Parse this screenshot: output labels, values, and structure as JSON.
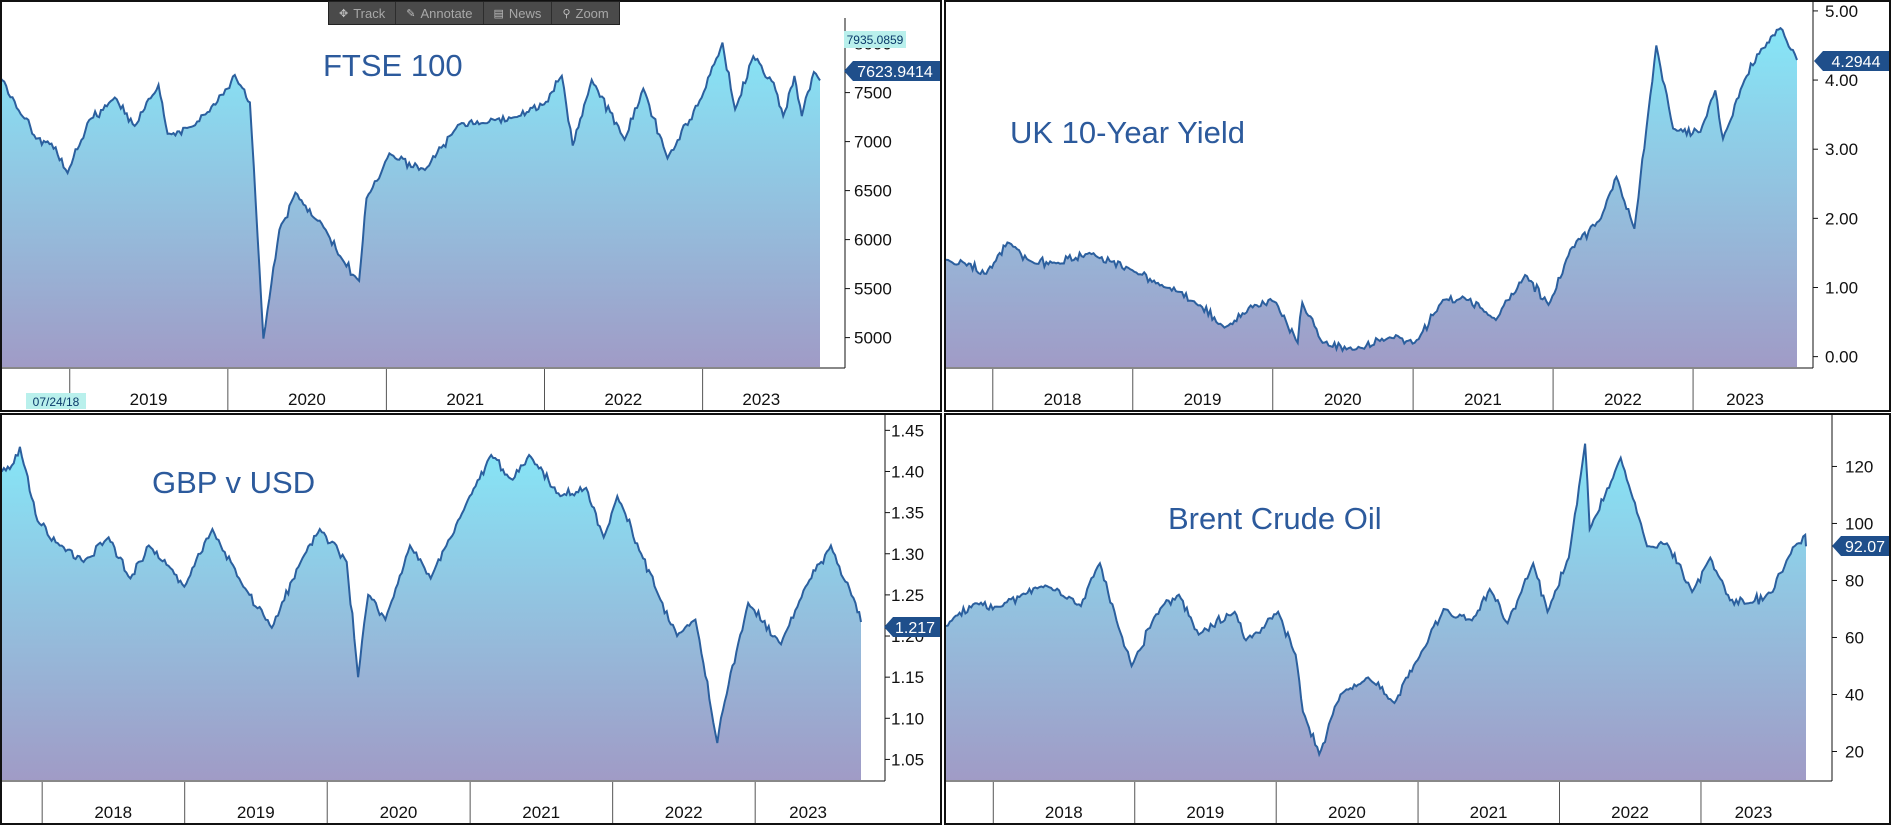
{
  "toolbar": {
    "track": "Track",
    "annotate": "Annotate",
    "news": "News",
    "zoom": "Zoom"
  },
  "colors": {
    "line": "#2b5f9e",
    "fill_top": "#86e6f7",
    "fill_bottom": "#a09bc6",
    "badge": "#1f4f8b",
    "title": "#2c5a9c",
    "frame": "#111111"
  },
  "chart_data": [
    {
      "id": "ftse",
      "type": "area",
      "title": "FTSE 100",
      "x_range": [
        "2018-07-24",
        "2023-09-29"
      ],
      "ylim": [
        4700,
        8200
      ],
      "y_ticks": [
        {
          "v": 5000,
          "label": "5000"
        },
        {
          "v": 5500,
          "label": "5500"
        },
        {
          "v": 6000,
          "label": "6000"
        },
        {
          "v": 6500,
          "label": "6500"
        },
        {
          "v": 7000,
          "label": "7000"
        },
        {
          "v": 7500,
          "label": "7500"
        },
        {
          "v": 8000,
          "label": "8000"
        }
      ],
      "x_labels": [
        "2019",
        "2020",
        "2021",
        "2022",
        "2023"
      ],
      "first_date_label": "07/24/18",
      "last_value_label": "7623.9414",
      "high_value_label": "7935.0859",
      "points": [
        [
          "2018-07-24",
          7655
        ],
        [
          "2018-09-10",
          7280
        ],
        [
          "2018-10-15",
          7030
        ],
        [
          "2018-11-20",
          6980
        ],
        [
          "2018-12-27",
          6680
        ],
        [
          "2019-02-15",
          7220
        ],
        [
          "2019-04-15",
          7450
        ],
        [
          "2019-05-31",
          7160
        ],
        [
          "2019-07-25",
          7580
        ],
        [
          "2019-08-15",
          7080
        ],
        [
          "2019-10-08",
          7150
        ],
        [
          "2019-11-15",
          7300
        ],
        [
          "2019-12-31",
          7540
        ],
        [
          "2020-01-17",
          7680
        ],
        [
          "2020-02-21",
          7400
        ],
        [
          "2020-03-23",
          4990
        ],
        [
          "2020-04-29",
          6100
        ],
        [
          "2020-06-05",
          6480
        ],
        [
          "2020-08-14",
          6100
        ],
        [
          "2020-09-21",
          5800
        ],
        [
          "2020-10-30",
          5580
        ],
        [
          "2020-11-16",
          6420
        ],
        [
          "2021-01-08",
          6880
        ],
        [
          "2021-03-31",
          6710
        ],
        [
          "2021-06-15",
          7170
        ],
        [
          "2021-08-12",
          7190
        ],
        [
          "2021-10-25",
          7250
        ],
        [
          "2021-12-31",
          7380
        ],
        [
          "2022-02-10",
          7670
        ],
        [
          "2022-03-07",
          6960
        ],
        [
          "2022-04-20",
          7630
        ],
        [
          "2022-07-05",
          7020
        ],
        [
          "2022-08-17",
          7540
        ],
        [
          "2022-10-12",
          6830
        ],
        [
          "2022-12-30",
          7450
        ],
        [
          "2023-02-16",
          8010
        ],
        [
          "2023-03-17",
          7330
        ],
        [
          "2023-04-28",
          7870
        ],
        [
          "2023-06-14",
          7600
        ],
        [
          "2023-07-06",
          7260
        ],
        [
          "2023-08-01",
          7670
        ],
        [
          "2023-08-18",
          7260
        ],
        [
          "2023-09-15",
          7710
        ],
        [
          "2023-09-29",
          7624
        ]
      ]
    },
    {
      "id": "gilt",
      "type": "area",
      "title": "UK 10-Year Yield",
      "x_range": [
        "2017-09-01",
        "2023-09-29"
      ],
      "ylim": [
        -0.15,
        5.1
      ],
      "y_ticks": [
        {
          "v": 0,
          "label": "0.00"
        },
        {
          "v": 1,
          "label": "1.00"
        },
        {
          "v": 2,
          "label": "2.00"
        },
        {
          "v": 3,
          "label": "3.00"
        },
        {
          "v": 4,
          "label": "4.00"
        },
        {
          "v": 5,
          "label": "5.00"
        }
      ],
      "x_labels": [
        "2018",
        "2019",
        "2020",
        "2021",
        "2022",
        "2023"
      ],
      "last_value_label": "4.2944",
      "points": [
        [
          "2017-09-01",
          1.4
        ],
        [
          "2017-10-20",
          1.35
        ],
        [
          "2017-12-15",
          1.2
        ],
        [
          "2018-02-08",
          1.65
        ],
        [
          "2018-04-20",
          1.35
        ],
        [
          "2018-06-15",
          1.35
        ],
        [
          "2018-09-10",
          1.5
        ],
        [
          "2018-12-31",
          1.25
        ],
        [
          "2019-03-28",
          1.0
        ],
        [
          "2019-06-10",
          0.8
        ],
        [
          "2019-08-28",
          0.42
        ],
        [
          "2019-11-15",
          0.75
        ],
        [
          "2020-01-10",
          0.78
        ],
        [
          "2020-03-06",
          0.2
        ],
        [
          "2020-03-18",
          0.78
        ],
        [
          "2020-05-10",
          0.2
        ],
        [
          "2020-08-01",
          0.1
        ],
        [
          "2020-11-01",
          0.28
        ],
        [
          "2021-01-05",
          0.2
        ],
        [
          "2021-03-20",
          0.82
        ],
        [
          "2021-05-15",
          0.85
        ],
        [
          "2021-08-05",
          0.53
        ],
        [
          "2021-10-20",
          1.18
        ],
        [
          "2021-12-20",
          0.75
        ],
        [
          "2022-02-15",
          1.55
        ],
        [
          "2022-05-06",
          2.0
        ],
        [
          "2022-06-15",
          2.6
        ],
        [
          "2022-08-01",
          1.85
        ],
        [
          "2022-09-27",
          4.5
        ],
        [
          "2022-11-10",
          3.3
        ],
        [
          "2023-01-20",
          3.25
        ],
        [
          "2023-02-28",
          3.85
        ],
        [
          "2023-03-20",
          3.15
        ],
        [
          "2023-05-15",
          4.0
        ],
        [
          "2023-06-28",
          4.45
        ],
        [
          "2023-08-17",
          4.75
        ],
        [
          "2023-09-29",
          4.29
        ]
      ]
    },
    {
      "id": "gbpusd",
      "type": "area",
      "title": "GBP v USD",
      "x_range": [
        "2017-09-15",
        "2023-09-29"
      ],
      "ylim": [
        1.025,
        1.465
      ],
      "y_ticks": [
        {
          "v": 1.05,
          "label": "1.05"
        },
        {
          "v": 1.1,
          "label": "1.10"
        },
        {
          "v": 1.15,
          "label": "1.15"
        },
        {
          "v": 1.2,
          "label": "1.20"
        },
        {
          "v": 1.25,
          "label": "1.25"
        },
        {
          "v": 1.3,
          "label": "1.30"
        },
        {
          "v": 1.35,
          "label": "1.35"
        },
        {
          "v": 1.4,
          "label": "1.40"
        },
        {
          "v": 1.45,
          "label": "1.45"
        }
      ],
      "x_labels": [
        "2018",
        "2019",
        "2020",
        "2021",
        "2022",
        "2023"
      ],
      "last_value_label": "1.217",
      "points": [
        [
          "2017-09-15",
          1.4
        ],
        [
          "2017-10-20",
          1.41
        ],
        [
          "2017-11-05",
          1.43
        ],
        [
          "2017-12-20",
          1.34
        ],
        [
          "2018-02-15",
          1.31
        ],
        [
          "2018-04-17",
          1.29
        ],
        [
          "2018-06-20",
          1.32
        ],
        [
          "2018-08-15",
          1.27
        ],
        [
          "2018-10-01",
          1.31
        ],
        [
          "2018-12-31",
          1.26
        ],
        [
          "2019-03-13",
          1.33
        ],
        [
          "2019-05-31",
          1.26
        ],
        [
          "2019-08-12",
          1.21
        ],
        [
          "2019-10-25",
          1.29
        ],
        [
          "2019-12-13",
          1.33
        ],
        [
          "2020-02-20",
          1.29
        ],
        [
          "2020-03-20",
          1.15
        ],
        [
          "2020-04-15",
          1.25
        ],
        [
          "2020-05-29",
          1.22
        ],
        [
          "2020-07-31",
          1.31
        ],
        [
          "2020-09-22",
          1.27
        ],
        [
          "2020-12-31",
          1.37
        ],
        [
          "2021-02-24",
          1.42
        ],
        [
          "2021-04-20",
          1.39
        ],
        [
          "2021-06-01",
          1.42
        ],
        [
          "2021-08-20",
          1.37
        ],
        [
          "2021-10-25",
          1.38
        ],
        [
          "2021-12-09",
          1.32
        ],
        [
          "2022-01-13",
          1.37
        ],
        [
          "2022-03-15",
          1.3
        ],
        [
          "2022-04-28",
          1.25
        ],
        [
          "2022-06-15",
          1.2
        ],
        [
          "2022-08-01",
          1.22
        ],
        [
          "2022-09-26",
          1.07
        ],
        [
          "2022-10-15",
          1.12
        ],
        [
          "2022-12-14",
          1.24
        ],
        [
          "2023-03-08",
          1.19
        ],
        [
          "2023-05-10",
          1.26
        ],
        [
          "2023-07-14",
          1.31
        ],
        [
          "2023-08-15",
          1.27
        ],
        [
          "2023-09-15",
          1.24
        ],
        [
          "2023-09-29",
          1.217
        ]
      ]
    },
    {
      "id": "brent",
      "type": "area",
      "title": "Brent Crude Oil",
      "x_range": [
        "2017-09-01",
        "2023-09-29"
      ],
      "ylim": [
        10,
        137
      ],
      "y_ticks": [
        {
          "v": 20,
          "label": "20"
        },
        {
          "v": 40,
          "label": "40"
        },
        {
          "v": 60,
          "label": "60"
        },
        {
          "v": 80,
          "label": "80"
        },
        {
          "v": 100,
          "label": "100"
        },
        {
          "v": 120,
          "label": "120"
        }
      ],
      "x_labels": [
        "2018",
        "2019",
        "2020",
        "2021",
        "2022",
        "2023"
      ],
      "last_value_label": "92.07",
      "points": [
        [
          "2017-09-01",
          64
        ],
        [
          "2017-11-15",
          72
        ],
        [
          "2018-01-25",
          71
        ],
        [
          "2018-03-15",
          75
        ],
        [
          "2018-05-20",
          78
        ],
        [
          "2018-08-15",
          71
        ],
        [
          "2018-10-03",
          86
        ],
        [
          "2018-11-15",
          66
        ],
        [
          "2018-12-24",
          50
        ],
        [
          "2019-02-20",
          67
        ],
        [
          "2019-04-25",
          75
        ],
        [
          "2019-06-15",
          61
        ],
        [
          "2019-09-16",
          69
        ],
        [
          "2019-10-15",
          59
        ],
        [
          "2020-01-06",
          69
        ],
        [
          "2020-02-20",
          54
        ],
        [
          "2020-03-10",
          34
        ],
        [
          "2020-04-21",
          19
        ],
        [
          "2020-06-15",
          40
        ],
        [
          "2020-08-25",
          46
        ],
        [
          "2020-11-01",
          37
        ],
        [
          "2021-01-10",
          55
        ],
        [
          "2021-03-08",
          70
        ],
        [
          "2021-05-20",
          66
        ],
        [
          "2021-07-05",
          77
        ],
        [
          "2021-08-20",
          65
        ],
        [
          "2021-10-25",
          86
        ],
        [
          "2021-12-01",
          69
        ],
        [
          "2022-01-25",
          88
        ],
        [
          "2022-03-08",
          128
        ],
        [
          "2022-03-20",
          98
        ],
        [
          "2022-06-08",
          123
        ],
        [
          "2022-08-15",
          92
        ],
        [
          "2022-10-05",
          93
        ],
        [
          "2022-12-09",
          76
        ],
        [
          "2023-01-25",
          88
        ],
        [
          "2023-03-17",
          73
        ],
        [
          "2023-05-04",
          72
        ],
        [
          "2023-07-05",
          76
        ],
        [
          "2023-08-10",
          87
        ],
        [
          "2023-09-27",
          96
        ],
        [
          "2023-09-29",
          92
        ]
      ]
    }
  ]
}
